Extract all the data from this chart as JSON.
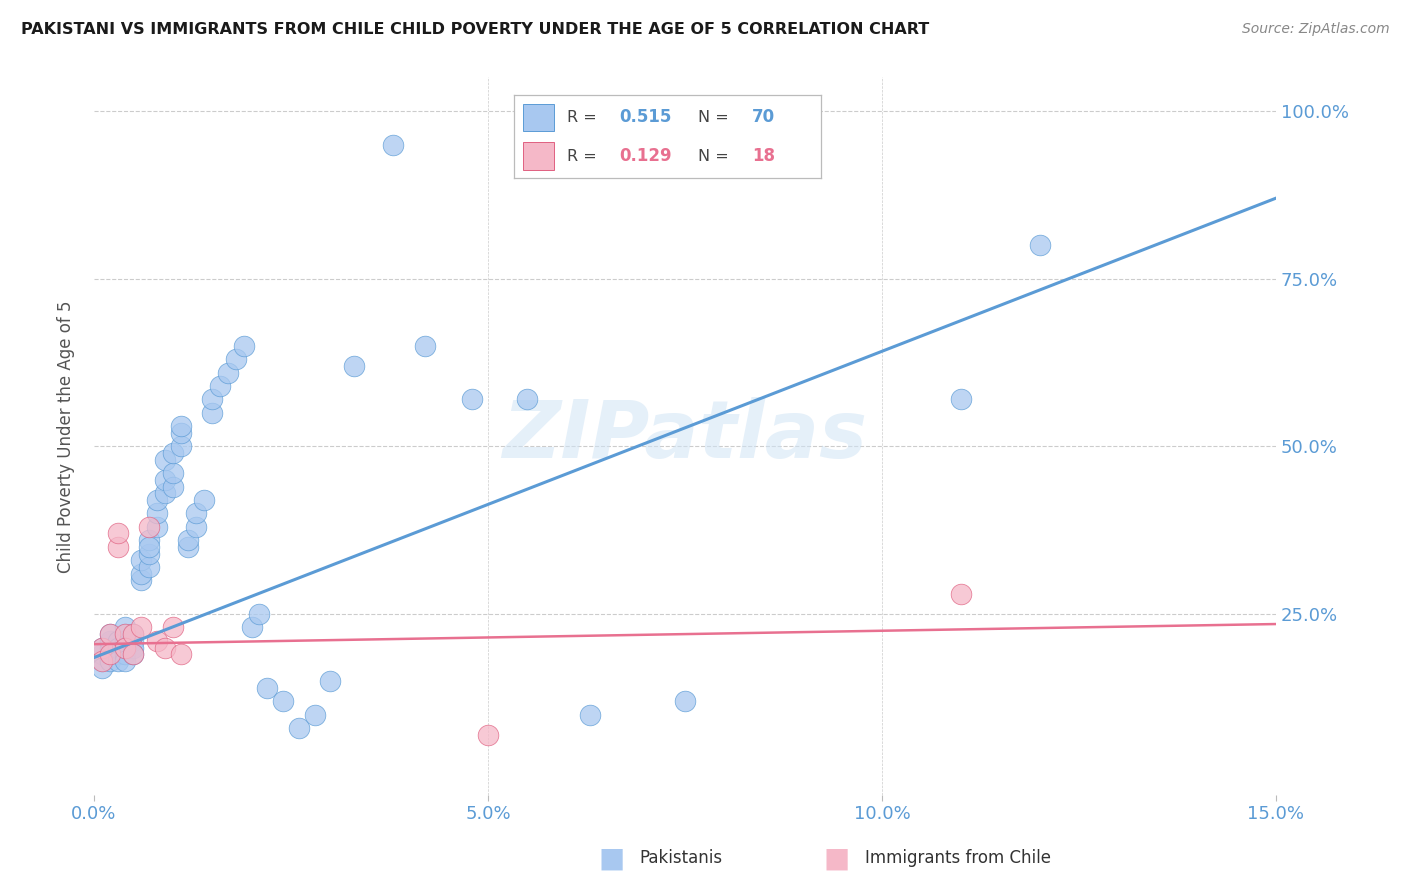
{
  "title": "PAKISTANI VS IMMIGRANTS FROM CHILE CHILD POVERTY UNDER THE AGE OF 5 CORRELATION CHART",
  "source": "Source: ZipAtlas.com",
  "ylabel": "Child Poverty Under the Age of 5",
  "xlim": [
    0.0,
    0.15
  ],
  "ylim": [
    -0.02,
    1.05
  ],
  "xticks": [
    0.0,
    0.05,
    0.1,
    0.15
  ],
  "xticklabels": [
    "0.0%",
    "5.0%",
    "10.0%",
    "15.0%"
  ],
  "yticks_right": [
    0.0,
    0.25,
    0.5,
    0.75,
    1.0
  ],
  "yticklabels_right": [
    "",
    "25.0%",
    "50.0%",
    "75.0%",
    "100.0%"
  ],
  "grid_yticks": [
    0.25,
    0.5,
    0.75,
    1.0
  ],
  "pakistani_color": "#A8C8F0",
  "pakistani_edge": "#5B9BD5",
  "chile_color": "#F5B8C8",
  "chile_edge": "#E06080",
  "trend_blue": "#5B9BD5",
  "trend_pink": "#E87090",
  "label_pakistanis": "Pakistanis",
  "label_chile": "Immigrants from Chile",
  "watermark": "ZIPatlas",
  "pakistani_x": [
    0.001,
    0.001,
    0.001,
    0.001,
    0.002,
    0.002,
    0.002,
    0.002,
    0.002,
    0.003,
    0.003,
    0.003,
    0.003,
    0.003,
    0.004,
    0.004,
    0.004,
    0.004,
    0.004,
    0.004,
    0.005,
    0.005,
    0.005,
    0.005,
    0.006,
    0.006,
    0.006,
    0.007,
    0.007,
    0.007,
    0.007,
    0.008,
    0.008,
    0.008,
    0.009,
    0.009,
    0.009,
    0.01,
    0.01,
    0.01,
    0.011,
    0.011,
    0.011,
    0.012,
    0.012,
    0.013,
    0.013,
    0.014,
    0.015,
    0.015,
    0.016,
    0.017,
    0.018,
    0.019,
    0.02,
    0.021,
    0.022,
    0.024,
    0.026,
    0.028,
    0.03,
    0.033,
    0.038,
    0.042,
    0.048,
    0.055,
    0.063,
    0.075,
    0.11,
    0.12
  ],
  "pakistani_y": [
    0.18,
    0.19,
    0.2,
    0.17,
    0.2,
    0.19,
    0.21,
    0.18,
    0.22,
    0.2,
    0.19,
    0.21,
    0.2,
    0.18,
    0.22,
    0.19,
    0.21,
    0.2,
    0.23,
    0.18,
    0.21,
    0.2,
    0.22,
    0.19,
    0.3,
    0.31,
    0.33,
    0.32,
    0.34,
    0.36,
    0.35,
    0.38,
    0.4,
    0.42,
    0.43,
    0.45,
    0.48,
    0.44,
    0.46,
    0.49,
    0.5,
    0.52,
    0.53,
    0.35,
    0.36,
    0.38,
    0.4,
    0.42,
    0.55,
    0.57,
    0.59,
    0.61,
    0.63,
    0.65,
    0.23,
    0.25,
    0.14,
    0.12,
    0.08,
    0.1,
    0.15,
    0.62,
    0.95,
    0.65,
    0.57,
    0.57,
    0.1,
    0.12,
    0.57,
    0.8
  ],
  "chile_x": [
    0.001,
    0.001,
    0.002,
    0.002,
    0.003,
    0.003,
    0.004,
    0.004,
    0.005,
    0.005,
    0.006,
    0.007,
    0.008,
    0.009,
    0.01,
    0.011,
    0.05,
    0.11
  ],
  "chile_y": [
    0.2,
    0.18,
    0.22,
    0.19,
    0.35,
    0.37,
    0.22,
    0.2,
    0.22,
    0.19,
    0.23,
    0.38,
    0.21,
    0.2,
    0.23,
    0.19,
    0.07,
    0.28
  ],
  "blue_trend_x0": 0.0,
  "blue_trend_y0": 0.185,
  "blue_trend_x1": 0.15,
  "blue_trend_y1": 0.87,
  "pink_trend_x0": 0.0,
  "pink_trend_y0": 0.205,
  "pink_trend_x1": 0.15,
  "pink_trend_y1": 0.235
}
